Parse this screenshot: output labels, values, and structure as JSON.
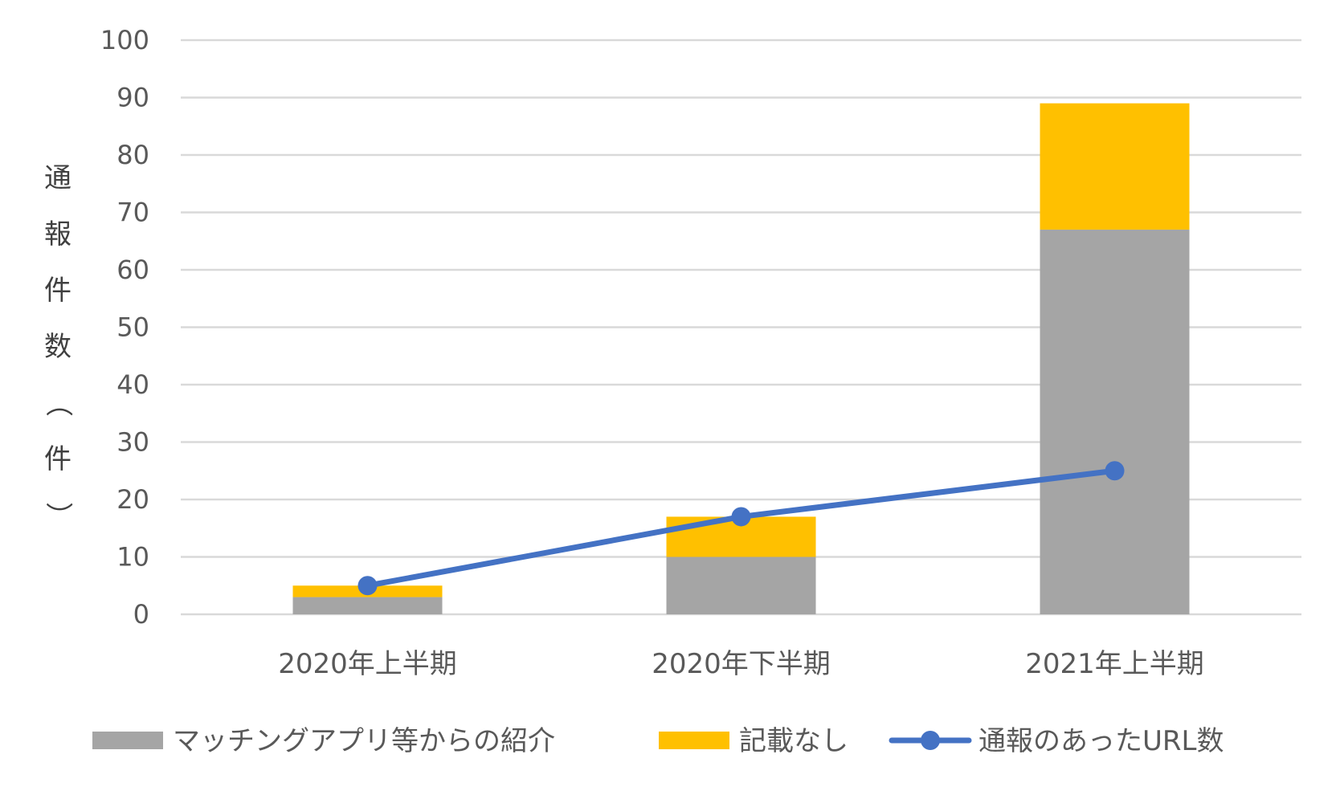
{
  "chart_data": {
    "type": "bar",
    "stacked": true,
    "categories": [
      "2020年上半期",
      "2020年下半期",
      "2021年上半期"
    ],
    "series": [
      {
        "name": "マッチングアプリ等からの紹介",
        "kind": "bar",
        "color": "#a5a5a5",
        "values": [
          3,
          10,
          67
        ]
      },
      {
        "name": "記載なし",
        "kind": "bar",
        "color": "#ffc000",
        "values": [
          2,
          7,
          22
        ]
      },
      {
        "name": "通報のあったURL数",
        "kind": "line",
        "color": "#4472c4",
        "values": [
          5,
          17,
          25
        ]
      }
    ],
    "ylabel": "通報件数（件）",
    "ylim": [
      0,
      100
    ],
    "yticks": [
      0,
      10,
      20,
      30,
      40,
      50,
      60,
      70,
      80,
      90,
      100
    ],
    "grid": true,
    "legend": "bottom"
  }
}
